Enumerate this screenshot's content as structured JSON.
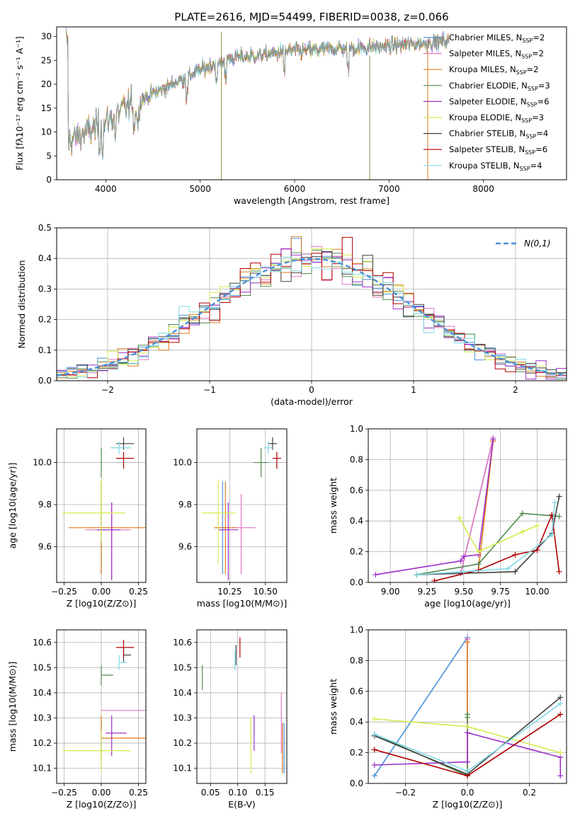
{
  "figure": {
    "title": "PLATE=2616, MJD=54499, FIBERID=0038, z=0.066"
  },
  "models": [
    {
      "name": "Chabrier MILES, N",
      "sub": "SSP",
      "suffix": "=2",
      "color": "#4a90d9"
    },
    {
      "name": "Salpeter MILES, N",
      "sub": "SSP",
      "suffix": "=2",
      "color": "#e377c2"
    },
    {
      "name": "Kroupa MILES, N",
      "sub": "SSP",
      "suffix": "=2",
      "color": "#e07b1a"
    },
    {
      "name": "Chabrier ELODIE, N",
      "sub": "SSP",
      "suffix": "=3",
      "color": "#4d8a4d"
    },
    {
      "name": "Salpeter ELODIE, N",
      "sub": "SSP",
      "suffix": "=6",
      "color": "#9b30c8"
    },
    {
      "name": "Kroupa ELODIE, N",
      "sub": "SSP",
      "suffix": "=3",
      "color": "#d4ec4c"
    },
    {
      "name": "Chabrier STELIB, N",
      "sub": "SSP",
      "suffix": "=4",
      "color": "#404040"
    },
    {
      "name": "Salpeter STELIB, N",
      "sub": "SSP",
      "suffix": "=6",
      "color": "#b00000"
    },
    {
      "name": "Kroupa STELIB, N",
      "sub": "SSP",
      "suffix": "=4",
      "color": "#7ed9e6"
    }
  ],
  "chart_data": [
    {
      "id": "spectrum",
      "type": "line",
      "xlabel": "wavelength [Angstrom, rest frame]",
      "ylabel": "Flux [fλ10⁻¹⁷ erg cm⁻² s⁻¹ A⁻¹]",
      "xlim": [
        3480,
        8880
      ],
      "ylim": [
        0,
        32
      ],
      "xticks": [
        4000,
        5000,
        6000,
        7000,
        8000
      ],
      "yticks": [
        0,
        5,
        10,
        15,
        20,
        25,
        30
      ],
      "continuum_x": [
        3600,
        3800,
        4000,
        4200,
        4500,
        4800,
        5000,
        5300,
        5600,
        6000,
        6500,
        7000,
        7300,
        7600
      ],
      "continuum_y": [
        8,
        10,
        12,
        15,
        18,
        21,
        23,
        25.5,
        26,
        27,
        27.5,
        28,
        28.5,
        29
      ],
      "data_range": [
        3580,
        7640
      ],
      "legend_placement": "upper right"
    },
    {
      "id": "residuals",
      "type": "bar",
      "xlabel": "(data-model)/error",
      "ylabel": "Normed distribution",
      "xlim": [
        -2.5,
        2.5
      ],
      "ylim": [
        0,
        0.5
      ],
      "xticks": [
        -2,
        -1,
        0,
        1,
        2
      ],
      "yticks": [
        0.0,
        0.1,
        0.2,
        0.3,
        0.4,
        0.5
      ],
      "bin_width": 0.1,
      "reference_label": "N(0,1)",
      "reference_color": "#4a90d9",
      "grid": true,
      "legend_placement": "upper right"
    },
    {
      "id": "age-vs-Z",
      "type": "scatter",
      "xlabel": "Z [log10(Z/Z⊙)]",
      "ylabel": "age  [log10(age/yr)]",
      "xlim": [
        -0.3,
        0.3
      ],
      "ylim": [
        9.43,
        10.16
      ],
      "xticks": [
        -0.25,
        0.0,
        0.25
      ],
      "yticks": [
        9.6,
        9.8,
        10.0
      ],
      "points": [
        {
          "model": 0,
          "x": 0.0,
          "y": 9.69,
          "xerr": [
            0.0,
            0.0
          ],
          "yerr": [
            0.22,
            0.22
          ]
        },
        {
          "model": 1,
          "x": 0.07,
          "y": 9.68,
          "xerr": [
            0.18,
            0.13
          ],
          "yerr": [
            0.24,
            0.13
          ]
        },
        {
          "model": 2,
          "x": 0.0,
          "y": 9.69,
          "xerr": [
            0.22,
            0.3
          ],
          "yerr": [
            0.22,
            0.22
          ]
        },
        {
          "model": 3,
          "x": 0.0,
          "y": 10.0,
          "xerr": [
            0.0,
            0.0
          ],
          "yerr": [
            0.07,
            0.07
          ]
        },
        {
          "model": 4,
          "x": 0.07,
          "y": 9.68,
          "xerr": [
            0.1,
            0.06
          ],
          "yerr": [
            0.24,
            0.13
          ]
        },
        {
          "model": 5,
          "x": 0.0,
          "y": 9.76,
          "xerr": [
            0.26,
            0.16
          ],
          "yerr": [
            0.14,
            0.16
          ]
        },
        {
          "model": 6,
          "x": 0.15,
          "y": 10.09,
          "xerr": [
            0.05,
            0.07
          ],
          "yerr": [
            0.03,
            0.03
          ]
        },
        {
          "model": 7,
          "x": 0.15,
          "y": 10.02,
          "xerr": [
            0.05,
            0.07
          ],
          "yerr": [
            0.05,
            0.03
          ]
        },
        {
          "model": 8,
          "x": 0.12,
          "y": 10.07,
          "xerr": [
            0.06,
            0.08
          ],
          "yerr": [
            0.03,
            0.03
          ]
        }
      ]
    },
    {
      "id": "age-vs-mass",
      "type": "scatter",
      "xlabel": "mass [log10(M/M⊙)]",
      "ylabel": "",
      "xlim": [
        10.02,
        10.65
      ],
      "ylim": [
        9.43,
        10.16
      ],
      "xticks": [
        10.25,
        10.5
      ],
      "yticks": [
        9.6,
        9.8,
        10.0
      ],
      "points": [
        {
          "model": 0,
          "x": 10.2,
          "y": 9.69,
          "xerr": [
            0.05,
            0.05
          ],
          "yerr": [
            0.22,
            0.22
          ]
        },
        {
          "model": 1,
          "x": 10.33,
          "y": 9.69,
          "xerr": [
            0.06,
            0.1
          ],
          "yerr": [
            0.22,
            0.16
          ]
        },
        {
          "model": 2,
          "x": 10.22,
          "y": 9.69,
          "xerr": [
            0.08,
            0.08
          ],
          "yerr": [
            0.22,
            0.22
          ]
        },
        {
          "model": 3,
          "x": 10.47,
          "y": 10.0,
          "xerr": [
            0.05,
            0.05
          ],
          "yerr": [
            0.07,
            0.07
          ]
        },
        {
          "model": 4,
          "x": 10.24,
          "y": 9.68,
          "xerr": [
            0.07,
            0.07
          ],
          "yerr": [
            0.24,
            0.13
          ]
        },
        {
          "model": 5,
          "x": 10.17,
          "y": 9.76,
          "xerr": [
            0.12,
            0.12
          ],
          "yerr": [
            0.24,
            0.16
          ]
        },
        {
          "model": 6,
          "x": 10.55,
          "y": 10.09,
          "xerr": [
            0.03,
            0.03
          ],
          "yerr": [
            0.03,
            0.03
          ]
        },
        {
          "model": 7,
          "x": 10.58,
          "y": 10.02,
          "xerr": [
            0.03,
            0.03
          ],
          "yerr": [
            0.05,
            0.03
          ]
        },
        {
          "model": 8,
          "x": 10.52,
          "y": 10.07,
          "xerr": [
            0.03,
            0.03
          ],
          "yerr": [
            0.03,
            0.03
          ]
        }
      ]
    },
    {
      "id": "weight-vs-age",
      "type": "line",
      "xlabel": "age  [log10(age/yr)]",
      "ylabel": "mass weight",
      "xlim": [
        8.85,
        10.2
      ],
      "ylim": [
        0,
        1
      ],
      "xticks": [
        9.0,
        9.25,
        9.5,
        9.75,
        10.0
      ],
      "yticks": [
        0.0,
        0.2,
        0.4,
        0.6,
        0.8,
        1.0
      ],
      "grid": true,
      "series": [
        {
          "model": 0,
          "x": [
            9.48,
            9.7
          ],
          "y": [
            0.06,
            0.94
          ]
        },
        {
          "model": 1,
          "x": [
            9.48,
            9.7
          ],
          "y": [
            0.06,
            0.94
          ]
        },
        {
          "model": 2,
          "x": [
            9.6,
            9.7
          ],
          "y": [
            0.08,
            0.92
          ]
        },
        {
          "model": 3,
          "x": [
            9.18,
            9.6,
            9.9,
            10.15
          ],
          "y": [
            0.05,
            0.12,
            0.45,
            0.43
          ]
        },
        {
          "model": 4,
          "x": [
            8.9,
            9.48,
            9.5,
            9.6,
            9.7
          ],
          "y": [
            0.05,
            0.14,
            0.17,
            0.18,
            0.93
          ]
        },
        {
          "model": 5,
          "x": [
            9.47,
            9.6,
            9.9,
            10.0
          ],
          "y": [
            0.42,
            0.2,
            0.33,
            0.37
          ]
        },
        {
          "model": 6,
          "x": [
            9.18,
            9.85,
            10.1,
            10.15
          ],
          "y": [
            0.05,
            0.07,
            0.32,
            0.56
          ]
        },
        {
          "model": 7,
          "x": [
            9.3,
            9.6,
            9.85,
            10.0,
            10.1,
            10.15
          ],
          "y": [
            0.01,
            0.08,
            0.18,
            0.21,
            0.44,
            0.07
          ]
        },
        {
          "model": 8,
          "x": [
            9.18,
            9.5,
            9.8,
            10.1,
            10.12
          ],
          "y": [
            0.05,
            0.07,
            0.09,
            0.31,
            0.52
          ]
        }
      ]
    },
    {
      "id": "mass-vs-Z",
      "type": "scatter",
      "xlabel": "Z [log10(Z/Z⊙)]",
      "ylabel": "mass [log10(M/M⊙)]",
      "xlim": [
        -0.3,
        0.3
      ],
      "ylim": [
        10.04,
        10.65
      ],
      "xticks": [
        -0.25,
        0.0,
        0.25
      ],
      "yticks": [
        10.1,
        10.2,
        10.3,
        10.4,
        10.5,
        10.6
      ],
      "points": [
        {
          "model": 0,
          "x": 0.0,
          "y": 10.2,
          "xerr": [
            0.0,
            0.0
          ],
          "yerr": [
            0.09,
            0.09
          ]
        },
        {
          "model": 1,
          "x": 0.0,
          "y": 10.33,
          "xerr": [
            0.0,
            0.3
          ],
          "yerr": [
            0.0,
            0.0
          ]
        },
        {
          "model": 2,
          "x": 0.0,
          "y": 10.22,
          "xerr": [
            0.0,
            0.3
          ],
          "yerr": [
            0.09,
            0.09
          ]
        },
        {
          "model": 3,
          "x": 0.0,
          "y": 10.47,
          "xerr": [
            0.0,
            0.08
          ],
          "yerr": [
            0.04,
            0.04
          ]
        },
        {
          "model": 4,
          "x": 0.07,
          "y": 10.24,
          "xerr": [
            0.04,
            0.1
          ],
          "yerr": [
            0.09,
            0.07
          ]
        },
        {
          "model": 5,
          "x": 0.0,
          "y": 10.17,
          "xerr": [
            0.26,
            0.2
          ],
          "yerr": [
            0.08,
            0.08
          ]
        },
        {
          "model": 6,
          "x": 0.15,
          "y": 10.55,
          "xerr": [
            0.0,
            0.05
          ],
          "yerr": [
            0.03,
            0.03
          ]
        },
        {
          "model": 7,
          "x": 0.15,
          "y": 10.58,
          "xerr": [
            0.05,
            0.07
          ],
          "yerr": [
            0.04,
            0.03
          ]
        },
        {
          "model": 8,
          "x": 0.12,
          "y": 10.52,
          "xerr": [
            0.0,
            0.05
          ],
          "yerr": [
            0.03,
            0.03
          ]
        }
      ]
    },
    {
      "id": "mass-vs-ebv",
      "type": "scatter",
      "xlabel": "E(B-V)",
      "ylabel": "",
      "xlim": [
        0.025,
        0.19
      ],
      "ylim": [
        10.04,
        10.65
      ],
      "xticks": [
        0.05,
        0.1,
        0.15
      ],
      "yticks": [
        10.1,
        10.2,
        10.3,
        10.4,
        10.5,
        10.6
      ],
      "points": [
        {
          "model": 0,
          "x": 0.185,
          "y": 10.18,
          "xerr": [
            0.0,
            0.0
          ],
          "yerr": [
            0.1,
            0.1
          ]
        },
        {
          "model": 1,
          "x": 0.18,
          "y": 10.28,
          "xerr": [
            0.0,
            0.0
          ],
          "yerr": [
            0.12,
            0.12
          ]
        },
        {
          "model": 2,
          "x": 0.182,
          "y": 10.18,
          "xerr": [
            0.0,
            0.0
          ],
          "yerr": [
            0.1,
            0.1
          ]
        },
        {
          "model": 3,
          "x": 0.035,
          "y": 10.46,
          "xerr": [
            0.0,
            0.0
          ],
          "yerr": [
            0.05,
            0.05
          ]
        },
        {
          "model": 4,
          "x": 0.13,
          "y": 10.24,
          "xerr": [
            0.0,
            0.0
          ],
          "yerr": [
            0.07,
            0.07
          ]
        },
        {
          "model": 5,
          "x": 0.124,
          "y": 10.19,
          "xerr": [
            0.0,
            0.0
          ],
          "yerr": [
            0.11,
            0.11
          ]
        },
        {
          "model": 6,
          "x": 0.097,
          "y": 10.55,
          "xerr": [
            0.0,
            0.0
          ],
          "yerr": [
            0.04,
            0.04
          ]
        },
        {
          "model": 7,
          "x": 0.104,
          "y": 10.58,
          "xerr": [
            0.0,
            0.0
          ],
          "yerr": [
            0.04,
            0.04
          ]
        },
        {
          "model": 8,
          "x": 0.095,
          "y": 10.53,
          "xerr": [
            0.0,
            0.0
          ],
          "yerr": [
            0.04,
            0.04
          ]
        }
      ]
    },
    {
      "id": "weight-vs-Z",
      "type": "line",
      "xlabel": "Z [log10(Z/Z⊙)]",
      "ylabel": "mass weight",
      "xlim": [
        -0.32,
        0.32
      ],
      "ylim": [
        0,
        1
      ],
      "xticks": [
        -0.2,
        0.0,
        0.2
      ],
      "yticks": [
        0.0,
        0.2,
        0.4,
        0.6,
        0.8,
        1.0
      ],
      "grid": true,
      "series": [
        {
          "model": 0,
          "x": [
            -0.3,
            0.0
          ],
          "y": [
            0.05,
            0.95
          ]
        },
        {
          "model": 1,
          "x": [
            0.0,
            0.0
          ],
          "y": [
            0.05,
            0.94
          ]
        },
        {
          "model": 2,
          "x": [
            0.0,
            0.0
          ],
          "y": [
            0.08,
            0.92
          ]
        },
        {
          "model": 3,
          "x": [
            -0.3,
            0.0,
            0.0,
            0.0
          ],
          "y": [
            0.32,
            0.05,
            0.43,
            0.45
          ]
        },
        {
          "model": 4,
          "x": [
            -0.3,
            0.0,
            0.0,
            0.3,
            0.3
          ],
          "y": [
            0.12,
            0.14,
            0.33,
            0.17,
            0.05
          ]
        },
        {
          "model": 5,
          "x": [
            -0.3,
            0.0,
            0.3
          ],
          "y": [
            0.42,
            0.37,
            0.2
          ]
        },
        {
          "model": 6,
          "x": [
            -0.3,
            0.0,
            0.3
          ],
          "y": [
            0.31,
            0.06,
            0.56
          ]
        },
        {
          "model": 7,
          "x": [
            -0.3,
            0.0,
            0.3
          ],
          "y": [
            0.22,
            0.05,
            0.45
          ]
        },
        {
          "model": 8,
          "x": [
            -0.3,
            0.0,
            0.3
          ],
          "y": [
            0.32,
            0.08,
            0.52
          ]
        }
      ]
    }
  ]
}
